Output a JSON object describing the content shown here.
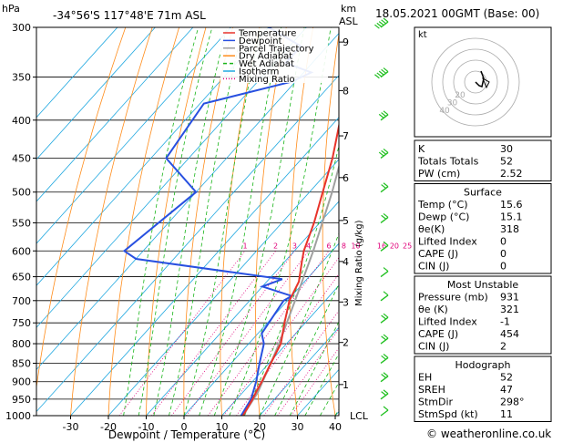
{
  "header": {
    "hpa_label": "hPa",
    "location": "-34°56'S  117°48'E  71m  ASL",
    "km_label": "km",
    "asl_label": "ASL",
    "datetime": "18.05.2021  00GMT  (Base: 00)"
  },
  "x_axis_label": "Dewpoint / Temperature (°C)",
  "mixing_axis_label": "Mixing Ratio (g/kg)",
  "copyright": "© weatheronline.co.uk",
  "lcl_label": "LCL",
  "colors": {
    "temperature": "#e8332a",
    "dewpoint": "#2850e0",
    "parcel": "#a0a0a0",
    "dry_adiabat": "#ff8c1a",
    "wet_adiabat": "#18b418",
    "isotherm": "#20a8e0",
    "mixing": "#e0007a",
    "wind": "#22c022"
  },
  "chart_data": {
    "type": "skewt",
    "title": "-34°56'S  117°48'E  71m  ASL",
    "xlabel": "Dewpoint / Temperature (°C)",
    "ylabel": "hPa",
    "pressure_levels": [
      300,
      350,
      400,
      450,
      500,
      550,
      600,
      650,
      700,
      750,
      800,
      850,
      900,
      950,
      1000
    ],
    "temperature_ticks": [
      -30,
      -20,
      -10,
      0,
      10,
      20,
      30,
      40
    ],
    "xlim": [
      -35,
      40
    ],
    "km_ticks": [
      {
        "km": "1",
        "p": 908
      },
      {
        "km": "2",
        "p": 797
      },
      {
        "km": "3",
        "p": 703
      },
      {
        "km": "4",
        "p": 620
      },
      {
        "km": "5",
        "p": 546
      },
      {
        "km": "6",
        "p": 478
      },
      {
        "km": "7",
        "p": 420
      },
      {
        "km": "8",
        "p": 365
      },
      {
        "km": "9",
        "p": 314
      }
    ],
    "mixing_ratio_labels": [
      "1",
      "2",
      "3",
      "4",
      "6",
      "8",
      "10",
      "16",
      "20",
      "25"
    ],
    "mixing_ratio_values": [
      1,
      2,
      3,
      4,
      6,
      8,
      10,
      16,
      20,
      25
    ],
    "legend": [
      "Temperature",
      "Dewpoint",
      "Parcel Trajectory",
      "Dry Adiabat",
      "Wet Adiabat",
      "Isotherm",
      "Mixing Ratio"
    ],
    "temperature_profile": [
      {
        "p": 1000,
        "t": 15.6
      },
      {
        "p": 950,
        "t": 14.2
      },
      {
        "p": 931,
        "t": 13.5
      },
      {
        "p": 900,
        "t": 12.5
      },
      {
        "p": 850,
        "t": 10.5
      },
      {
        "p": 800,
        "t": 8.5
      },
      {
        "p": 750,
        "t": 4.5
      },
      {
        "p": 700,
        "t": 0.5
      },
      {
        "p": 660,
        "t": -1.5
      },
      {
        "p": 620,
        "t": -5.5
      },
      {
        "p": 600,
        "t": -7.5
      },
      {
        "p": 550,
        "t": -11.5
      },
      {
        "p": 500,
        "t": -16.5
      },
      {
        "p": 450,
        "t": -22.0
      },
      {
        "p": 400,
        "t": -29.0
      },
      {
        "p": 350,
        "t": -36.5
      },
      {
        "p": 300,
        "t": -46.0
      }
    ],
    "dewpoint_profile": [
      {
        "p": 1000,
        "t": 15.1
      },
      {
        "p": 950,
        "t": 13.8
      },
      {
        "p": 900,
        "t": 11.0
      },
      {
        "p": 850,
        "t": 7.5
      },
      {
        "p": 800,
        "t": 4.0
      },
      {
        "p": 775,
        "t": 1.0
      },
      {
        "p": 700,
        "t": -1.0
      },
      {
        "p": 690,
        "t": 0.0
      },
      {
        "p": 670,
        "t": -10.0
      },
      {
        "p": 655,
        "t": -6.5
      },
      {
        "p": 615,
        "t": -50.0
      },
      {
        "p": 600,
        "t": -55.0
      },
      {
        "p": 500,
        "t": -50.0
      },
      {
        "p": 450,
        "t": -66.0
      },
      {
        "p": 380,
        "t": -69.0
      },
      {
        "p": 355,
        "t": -51.0
      },
      {
        "p": 345,
        "t": -48.0
      },
      {
        "p": 335,
        "t": -57.0
      },
      {
        "p": 318,
        "t": -57.0
      },
      {
        "p": 300,
        "t": -70.0
      }
    ],
    "parcel_profile": [
      {
        "p": 1000,
        "t": 15.6
      },
      {
        "p": 931,
        "t": 14.0
      },
      {
        "p": 850,
        "t": 10.5
      },
      {
        "p": 800,
        "t": 8.0
      },
      {
        "p": 700,
        "t": 2.0
      },
      {
        "p": 600,
        "t": -5.0
      },
      {
        "p": 500,
        "t": -14.0
      },
      {
        "p": 400,
        "t": -26.0
      },
      {
        "p": 300,
        "t": -42.0
      }
    ],
    "wind_barbs": [
      {
        "p": 300,
        "speed": 65,
        "dir": 290
      },
      {
        "p": 350,
        "speed": 60,
        "dir": 290
      },
      {
        "p": 400,
        "speed": 30,
        "dir": 300
      },
      {
        "p": 450,
        "speed": 25,
        "dir": 300
      },
      {
        "p": 500,
        "speed": 15,
        "dir": 310
      },
      {
        "p": 550,
        "speed": 15,
        "dir": 310
      },
      {
        "p": 600,
        "speed": 10,
        "dir": 310
      },
      {
        "p": 650,
        "speed": 10,
        "dir": 300
      },
      {
        "p": 700,
        "speed": 10,
        "dir": 300
      },
      {
        "p": 750,
        "speed": 15,
        "dir": 300
      },
      {
        "p": 800,
        "speed": 15,
        "dir": 300
      },
      {
        "p": 850,
        "speed": 20,
        "dir": 300
      },
      {
        "p": 900,
        "speed": 20,
        "dir": 300
      },
      {
        "p": 950,
        "speed": 15,
        "dir": 300
      },
      {
        "p": 1000,
        "speed": 10,
        "dir": 300
      }
    ]
  },
  "hodograph": {
    "unit_label": "kt",
    "ring_labels": [
      "20",
      "30",
      "40"
    ]
  },
  "indices": {
    "rows": [
      {
        "label": "K",
        "value": "30"
      },
      {
        "label": "Totals Totals",
        "value": "52"
      },
      {
        "label": "PW (cm)",
        "value": "2.52"
      }
    ]
  },
  "surface": {
    "title": "Surface",
    "rows": [
      {
        "label": "Temp (°C)",
        "value": "15.6"
      },
      {
        "label": "Dewp (°C)",
        "value": "15.1"
      },
      {
        "label": "θe(K)",
        "value": "318"
      },
      {
        "label": "Lifted Index",
        "value": "0"
      },
      {
        "label": "CAPE (J)",
        "value": "0"
      },
      {
        "label": "CIN (J)",
        "value": "0"
      }
    ]
  },
  "most_unstable": {
    "title": "Most Unstable",
    "rows": [
      {
        "label": "Pressure (mb)",
        "value": "931"
      },
      {
        "label": "θe (K)",
        "value": "321"
      },
      {
        "label": "Lifted Index",
        "value": "-1"
      },
      {
        "label": "CAPE (J)",
        "value": "454"
      },
      {
        "label": "CIN (J)",
        "value": "2"
      }
    ]
  },
  "hodograph_table": {
    "title": "Hodograph",
    "rows": [
      {
        "label": "EH",
        "value": "52"
      },
      {
        "label": "SREH",
        "value": "47"
      },
      {
        "label": "StmDir",
        "value": "298°"
      },
      {
        "label": "StmSpd (kt)",
        "value": "11"
      }
    ]
  }
}
